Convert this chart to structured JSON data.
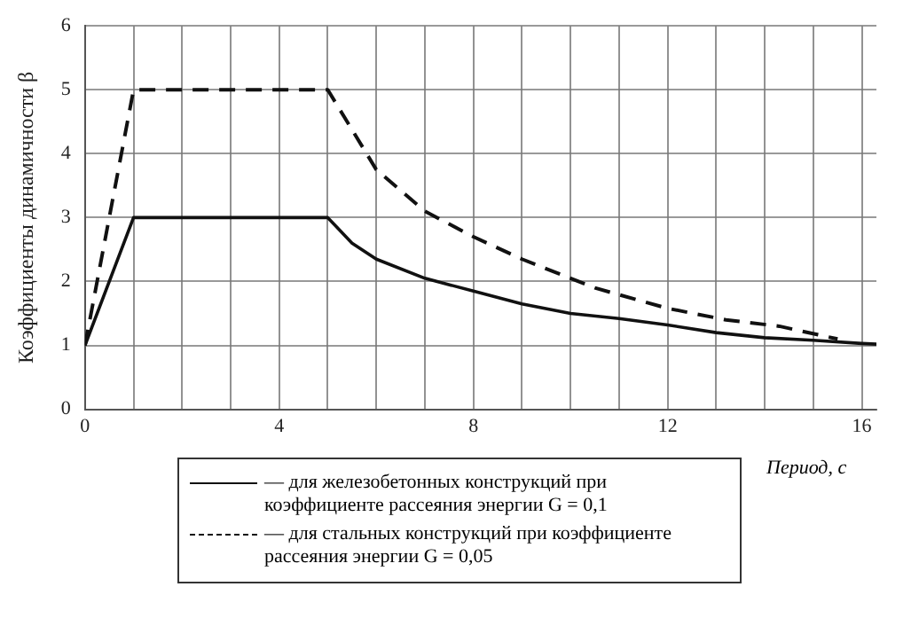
{
  "chart_data": {
    "type": "line",
    "xlabel": "Период, с",
    "ylabel": "Коэффициенты динамичности β",
    "xlim": [
      0,
      16.3
    ],
    "xticks": [
      0,
      {
        "value": 1,
        "label": null
      },
      {
        "value": 2,
        "label": null
      },
      {
        "value": 3,
        "label": null
      },
      4,
      {
        "value": 5,
        "label": null
      },
      {
        "value": 6,
        "label": null
      },
      {
        "value": 7,
        "label": null
      },
      8,
      {
        "value": 9,
        "label": null
      },
      {
        "value": 10,
        "label": null
      },
      {
        "value": 11,
        "label": null
      },
      12,
      {
        "value": 13,
        "label": null
      },
      {
        "value": 14,
        "label": null
      },
      {
        "value": 15,
        "label": null
      },
      16
    ],
    "ylim": [
      0,
      6
    ],
    "yticks": [
      0,
      1,
      2,
      3,
      4,
      5,
      6
    ],
    "grid": true,
    "legend": "bottom",
    "marker": "none",
    "series": [
      {
        "name": "— для железобетонных конструкций при коэффициенте рассеяния энергии G = 0,1",
        "color": "#111111",
        "line_style": "solid",
        "x": [
          0,
          1,
          5,
          5.5,
          6,
          7,
          8,
          9,
          10,
          11,
          12,
          13,
          14,
          15,
          16,
          16.3
        ],
        "values": [
          1,
          3,
          3,
          2.6,
          2.35,
          2.05,
          1.85,
          1.65,
          1.5,
          1.42,
          1.32,
          1.2,
          1.12,
          1.08,
          1.03,
          1.02
        ]
      },
      {
        "name": "— для стальных конструкций при коэффициенте рассеяния энергии G = 0,05",
        "color": "#111111",
        "line_style": "dashed",
        "x": [
          0,
          1,
          5,
          6,
          7,
          8,
          9,
          10,
          10.5,
          12,
          13.2,
          14.3,
          15.2,
          15.5
        ],
        "values": [
          1,
          5,
          5,
          3.75,
          3.1,
          2.7,
          2.35,
          2.05,
          1.9,
          1.58,
          1.4,
          1.3,
          1.15,
          1.1
        ]
      }
    ]
  }
}
